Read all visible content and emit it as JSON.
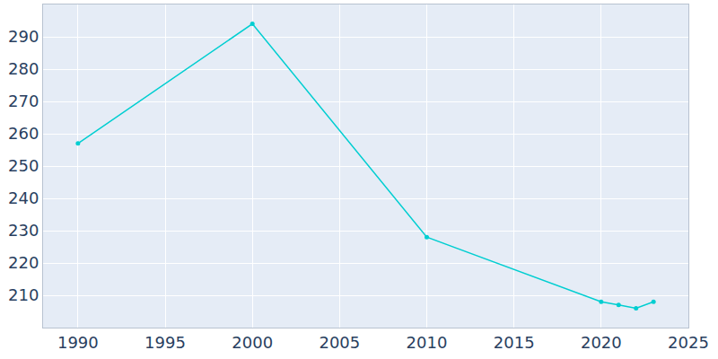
{
  "chart_data": {
    "type": "line",
    "x": [
      1990,
      2000,
      2010,
      2020,
      2021,
      2022,
      2023
    ],
    "values": [
      257,
      294,
      228,
      208,
      207,
      206,
      208
    ],
    "color": "#00ced1",
    "marker": "circle",
    "xlim": [
      1988,
      2025
    ],
    "xticks": [
      1990,
      1995,
      2000,
      2005,
      2010,
      2015,
      2020,
      2025
    ],
    "ylim": [
      200,
      300
    ],
    "yticks": [
      210,
      220,
      230,
      240,
      250,
      260,
      270,
      280,
      290
    ],
    "grid": true
  }
}
